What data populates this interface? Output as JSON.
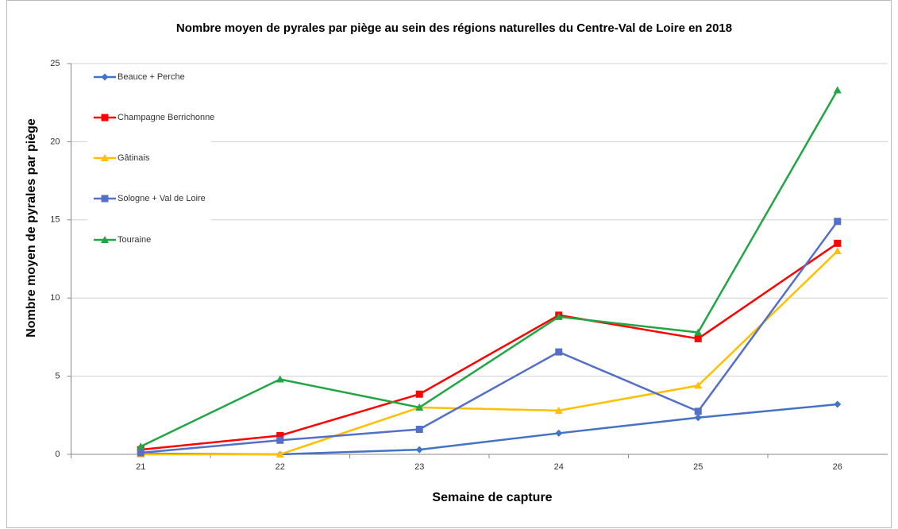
{
  "chart_data": {
    "type": "line",
    "title": "Nombre moyen de pyrales par piège au sein des régions naturelles du Centre-Val de Loire en 2018",
    "x_label": "Semaine de capture",
    "y_label": "Nombre moyen de pyrales par piège",
    "categories": [
      "21",
      "22",
      "23",
      "24",
      "25",
      "26"
    ],
    "ylim": [
      0,
      25
    ],
    "yticks": [
      0,
      5,
      10,
      15,
      20,
      25
    ],
    "grid": true,
    "legend": "upper left",
    "series": [
      {
        "name": "Beauce + Perche",
        "color": "#4472c4",
        "marker": "diamond",
        "values": [
          0.05,
          0,
          0.3,
          1.35,
          2.35,
          3.2
        ]
      },
      {
        "name": "Champagne Berrichonne",
        "color": "#ff0000",
        "marker": "square",
        "values": [
          0.3,
          1.2,
          3.85,
          8.9,
          7.4,
          13.5
        ]
      },
      {
        "name": "Gâtinais",
        "color": "#ffc000",
        "marker": "triangle",
        "values": [
          0,
          0,
          3,
          2.8,
          4.4,
          13
        ]
      },
      {
        "name": "Sologne + Val de Loire",
        "color": "#5470c6",
        "marker": "square",
        "values": [
          0.1,
          0.9,
          1.6,
          6.55,
          2.75,
          14.9
        ]
      },
      {
        "name": "Touraine",
        "color": "#21a645",
        "marker": "triangle",
        "values": [
          0.5,
          4.8,
          3,
          8.8,
          7.8,
          23.3
        ]
      }
    ]
  }
}
